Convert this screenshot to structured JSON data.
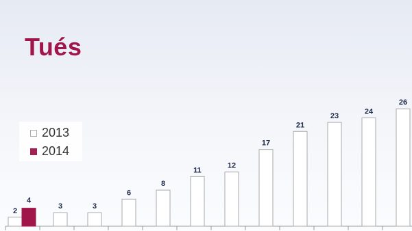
{
  "chart_data": {
    "type": "bar",
    "title": "Tués",
    "ylim": [
      0,
      28
    ],
    "grid": false,
    "legend_position": "left",
    "colors": {
      "2013_fill": "#ffffff",
      "2013_stroke": "#a8a8a8",
      "2014_fill": "#a0164b",
      "axis": "#9a9a9a",
      "label": "#1f2a4a",
      "title": "#a0164b"
    },
    "categories": [
      "",
      "",
      "",
      "",
      "",
      "",
      "",
      "",
      "",
      "",
      "",
      ""
    ],
    "series": [
      {
        "name": "2013",
        "values": [
          2,
          3,
          3,
          6,
          8,
          11,
          12,
          17,
          21,
          23,
          24,
          26
        ]
      },
      {
        "name": "2014",
        "values": [
          4,
          null,
          null,
          null,
          null,
          null,
          null,
          null,
          null,
          null,
          null,
          null
        ]
      }
    ]
  }
}
